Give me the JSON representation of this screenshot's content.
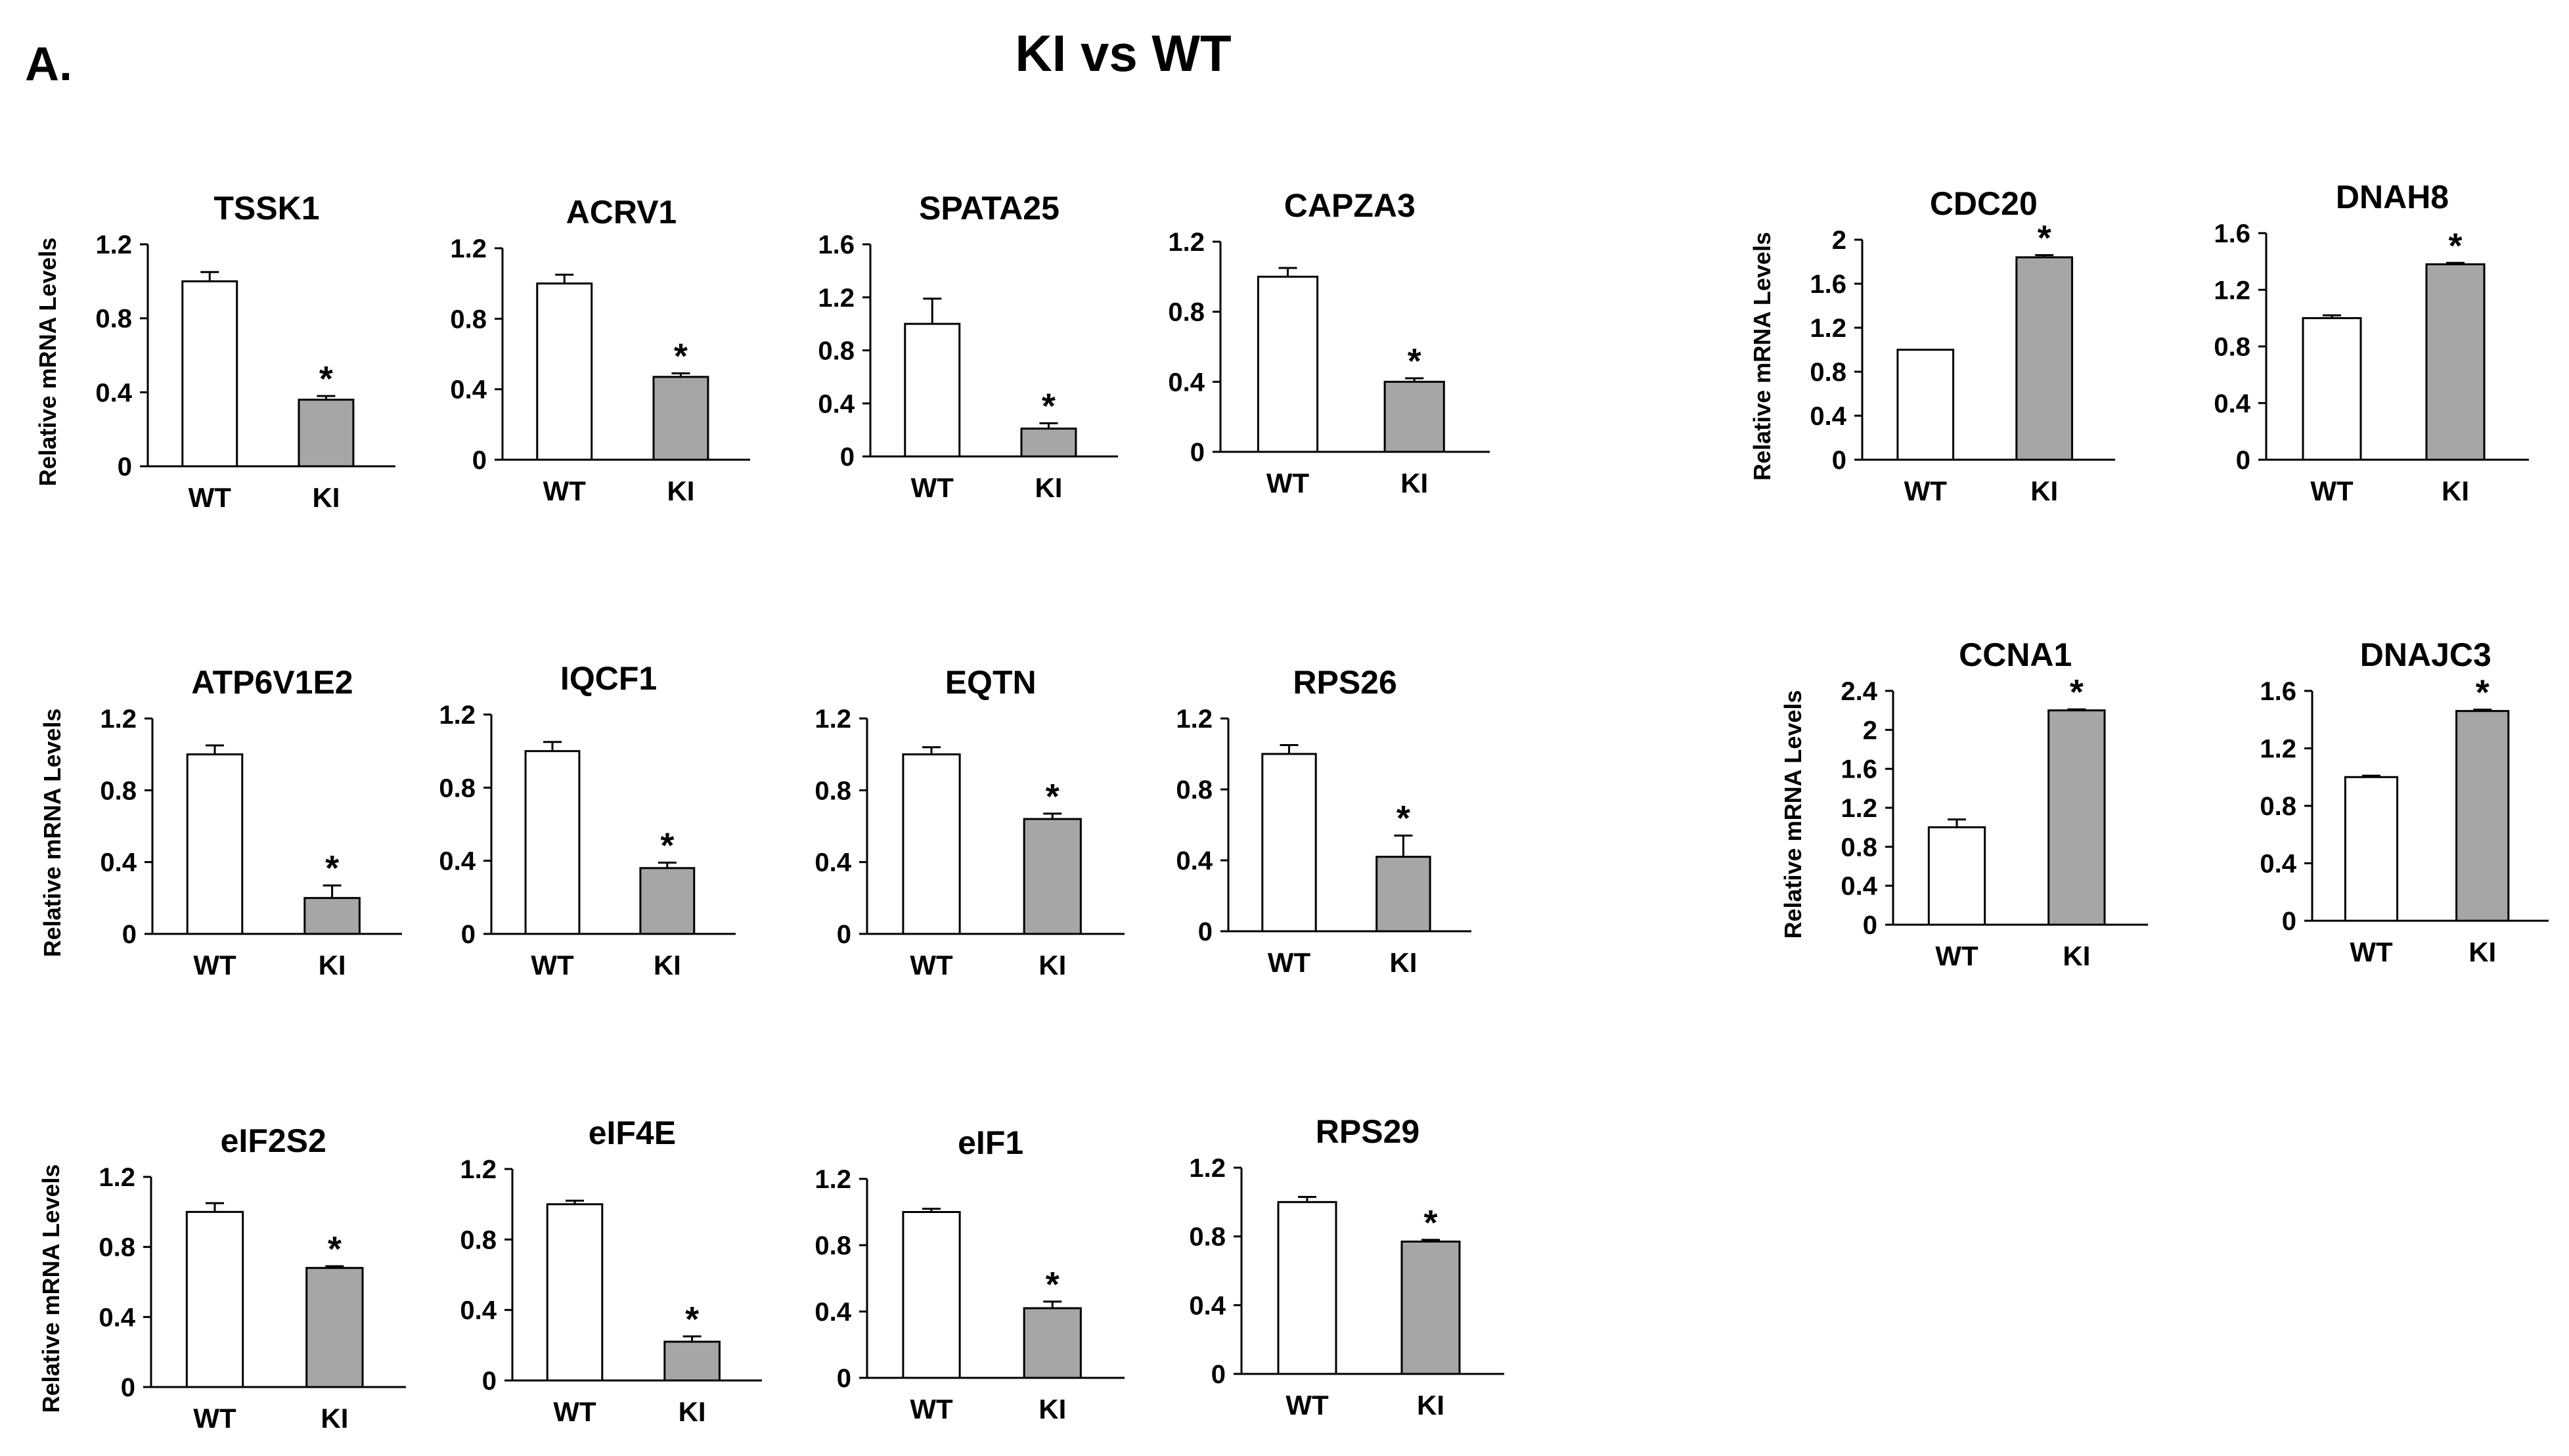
{
  "figure": {
    "panel_label": "A.",
    "title": "KI vs WT"
  },
  "colors": {
    "wt_fill": "#ffffff",
    "ki_fill": "#a6a6a6",
    "outline": "#000000"
  },
  "chart_data": [
    {
      "type": "bar",
      "title": "TSSK1",
      "ylabel": "Relative mRNA Levels",
      "categories": [
        "WT",
        "KI"
      ],
      "values": [
        1.0,
        0.36
      ],
      "errors": [
        0.05,
        0.02
      ],
      "ylim": [
        0,
        1.2
      ],
      "yticks": [
        "0",
        "0.4",
        "0.8",
        "1.2"
      ],
      "significance": [
        "",
        "*"
      ]
    },
    {
      "type": "bar",
      "title": "ACRV1",
      "ylabel": "",
      "categories": [
        "WT",
        "KI"
      ],
      "values": [
        1.0,
        0.47
      ],
      "errors": [
        0.05,
        0.02
      ],
      "ylim": [
        0,
        1.2
      ],
      "yticks": [
        "0",
        "0.4",
        "0.8",
        "1.2"
      ],
      "significance": [
        "",
        "*"
      ]
    },
    {
      "type": "bar",
      "title": "SPATA25",
      "ylabel": "",
      "categories": [
        "WT",
        "KI"
      ],
      "values": [
        1.0,
        0.21
      ],
      "errors": [
        0.19,
        0.04
      ],
      "ylim": [
        0,
        1.6
      ],
      "yticks": [
        "0",
        "0.4",
        "0.8",
        "1.2",
        "1.6"
      ],
      "significance": [
        "",
        "*"
      ]
    },
    {
      "type": "bar",
      "title": "CAPZA3",
      "ylabel": "",
      "categories": [
        "WT",
        "KI"
      ],
      "values": [
        1.0,
        0.4
      ],
      "errors": [
        0.05,
        0.02
      ],
      "ylim": [
        0,
        1.2
      ],
      "yticks": [
        "0",
        "0.4",
        "0.8",
        "1.2"
      ],
      "significance": [
        "",
        "*"
      ]
    },
    {
      "type": "bar",
      "title": "CDC20",
      "ylabel": "Relative mRNA Levels",
      "categories": [
        "WT",
        "KI"
      ],
      "values": [
        1.0,
        1.84
      ],
      "errors": [
        0.0,
        0.02
      ],
      "ylim": [
        0,
        2.0
      ],
      "yticks": [
        "0",
        "0.4",
        "0.8",
        "1.2",
        "1.6",
        "2"
      ],
      "significance": [
        "",
        "*"
      ]
    },
    {
      "type": "bar",
      "title": "DNAH8",
      "ylabel": "",
      "categories": [
        "WT",
        "KI"
      ],
      "values": [
        1.0,
        1.38
      ],
      "errors": [
        0.02,
        0.01
      ],
      "ylim": [
        0,
        1.6
      ],
      "yticks": [
        "0",
        "0.4",
        "0.8",
        "1.2",
        "1.6"
      ],
      "significance": [
        "",
        "*"
      ]
    },
    {
      "type": "bar",
      "title": "ATP6V1E2",
      "ylabel": "Relative mRNA Levels",
      "categories": [
        "WT",
        "KI"
      ],
      "values": [
        1.0,
        0.2
      ],
      "errors": [
        0.05,
        0.07
      ],
      "ylim": [
        0,
        1.2
      ],
      "yticks": [
        "0",
        "0.4",
        "0.8",
        "1.2"
      ],
      "significance": [
        "",
        "*"
      ]
    },
    {
      "type": "bar",
      "title": "IQCF1",
      "ylabel": "",
      "categories": [
        "WT",
        "KI"
      ],
      "values": [
        1.0,
        0.36
      ],
      "errors": [
        0.05,
        0.03
      ],
      "ylim": [
        0,
        1.2
      ],
      "yticks": [
        "0",
        "0.4",
        "0.8",
        "1.2"
      ],
      "significance": [
        "",
        "*"
      ]
    },
    {
      "type": "bar",
      "title": "EQTN",
      "ylabel": "",
      "categories": [
        "WT",
        "KI"
      ],
      "values": [
        1.0,
        0.64
      ],
      "errors": [
        0.04,
        0.03
      ],
      "ylim": [
        0,
        1.2
      ],
      "yticks": [
        "0",
        "0.4",
        "0.8",
        "1.2"
      ],
      "significance": [
        "",
        "*"
      ]
    },
    {
      "type": "bar",
      "title": "RPS26",
      "ylabel": "",
      "categories": [
        "WT",
        "KI"
      ],
      "values": [
        1.0,
        0.42
      ],
      "errors": [
        0.05,
        0.12
      ],
      "ylim": [
        0,
        1.2
      ],
      "yticks": [
        "0",
        "0.4",
        "0.8",
        "1.2"
      ],
      "significance": [
        "",
        "*"
      ]
    },
    {
      "type": "bar",
      "title": "CCNA1",
      "ylabel": "Relative mRNA Levels",
      "categories": [
        "WT",
        "KI"
      ],
      "values": [
        1.0,
        2.2
      ],
      "errors": [
        0.08,
        0.01
      ],
      "ylim": [
        0,
        2.4
      ],
      "yticks": [
        "0",
        "0.4",
        "0.8",
        "1.2",
        "1.6",
        "2",
        "2.4"
      ],
      "significance": [
        "",
        "*"
      ]
    },
    {
      "type": "bar",
      "title": "DNAJC3",
      "ylabel": "",
      "categories": [
        "WT",
        "KI"
      ],
      "values": [
        1.0,
        1.46
      ],
      "errors": [
        0.01,
        0.01
      ],
      "ylim": [
        0,
        1.6
      ],
      "yticks": [
        "0",
        "0.4",
        "0.8",
        "1.2",
        "1.6"
      ],
      "significance": [
        "",
        "*"
      ]
    },
    {
      "type": "bar",
      "title": "eIF2S2",
      "ylabel": "Relative mRNA Levels",
      "categories": [
        "WT",
        "KI"
      ],
      "values": [
        1.0,
        0.68
      ],
      "errors": [
        0.05,
        0.01
      ],
      "ylim": [
        0,
        1.2
      ],
      "yticks": [
        "0",
        "0.4",
        "0.8",
        "1.2"
      ],
      "significance": [
        "",
        "*"
      ]
    },
    {
      "type": "bar",
      "title": "eIF4E",
      "ylabel": "",
      "categories": [
        "WT",
        "KI"
      ],
      "values": [
        1.0,
        0.22
      ],
      "errors": [
        0.02,
        0.03
      ],
      "ylim": [
        0,
        1.2
      ],
      "yticks": [
        "0",
        "0.4",
        "0.8",
        "1.2"
      ],
      "significance": [
        "",
        "*"
      ]
    },
    {
      "type": "bar",
      "title": "eIF1",
      "ylabel": "",
      "categories": [
        "WT",
        "KI"
      ],
      "values": [
        1.0,
        0.42
      ],
      "errors": [
        0.02,
        0.04
      ],
      "ylim": [
        0,
        1.2
      ],
      "yticks": [
        "0",
        "0.4",
        "0.8",
        "1.2"
      ],
      "significance": [
        "",
        "*"
      ]
    },
    {
      "type": "bar",
      "title": "RPS29",
      "ylabel": "",
      "categories": [
        "WT",
        "KI"
      ],
      "values": [
        1.0,
        0.77
      ],
      "errors": [
        0.03,
        0.01
      ],
      "ylim": [
        0,
        1.2
      ],
      "yticks": [
        "0",
        "0.4",
        "0.8",
        "1.2"
      ],
      "significance": [
        "",
        "*"
      ]
    }
  ]
}
